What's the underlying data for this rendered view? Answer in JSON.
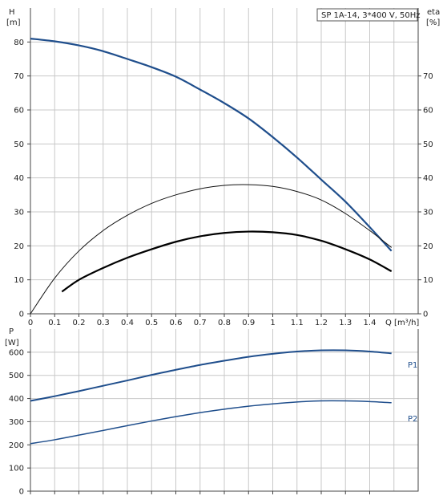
{
  "chart_data": [
    {
      "type": "line",
      "title": "SP 1A-14, 3*400 V, 50Hz",
      "ylabel": "H",
      "yunit": "[m]",
      "y2label": "eta",
      "y2unit": "[%]",
      "xlabel": "Q [m³/h]",
      "xlim": [
        0,
        1.6
      ],
      "ylim": [
        0,
        90
      ],
      "xticks": [
        0,
        0.1,
        0.2,
        0.3,
        0.4,
        0.5,
        0.6,
        0.7,
        0.8,
        0.9,
        1.0,
        1.1,
        1.2,
        1.3,
        1.4
      ],
      "yticks": [
        0,
        10,
        20,
        30,
        40,
        50,
        60,
        70,
        80
      ],
      "y2ticks": [
        0,
        10,
        20,
        30,
        40,
        50,
        60,
        70
      ],
      "grid": true,
      "series": [
        {
          "key": "head",
          "color": "#1f4e8c",
          "x": [
            0,
            0.1,
            0.2,
            0.3,
            0.4,
            0.5,
            0.6,
            0.7,
            0.8,
            0.9,
            1.0,
            1.1,
            1.2,
            1.3,
            1.4,
            1.49
          ],
          "y": [
            81,
            80.2,
            79,
            77.3,
            75,
            72.6,
            69.8,
            66,
            62,
            57.5,
            52,
            46,
            39.5,
            33,
            25.5,
            18.5
          ]
        },
        {
          "key": "eta_pump",
          "color": "#111111",
          "x": [
            0,
            0.1,
            0.2,
            0.3,
            0.4,
            0.5,
            0.6,
            0.7,
            0.8,
            0.9,
            1.0,
            1.1,
            1.2,
            1.3,
            1.4,
            1.49
          ],
          "y": [
            0,
            10.5,
            18.5,
            24.5,
            29,
            32.5,
            35,
            36.8,
            37.8,
            38,
            37.5,
            36,
            33.5,
            29.5,
            24.5,
            19.5
          ]
        },
        {
          "key": "eta_total",
          "color": "#000000",
          "x": [
            0.13,
            0.2,
            0.3,
            0.4,
            0.5,
            0.6,
            0.7,
            0.8,
            0.9,
            1.0,
            1.1,
            1.2,
            1.3,
            1.4,
            1.49
          ],
          "y": [
            6.5,
            10,
            13.5,
            16.5,
            19,
            21.2,
            22.8,
            23.8,
            24.2,
            24,
            23.2,
            21.5,
            19,
            16,
            12.5
          ]
        }
      ]
    },
    {
      "type": "line",
      "ylabel": "P",
      "yunit": "[W]",
      "xlim": [
        0,
        1.6
      ],
      "ylim": [
        0,
        700
      ],
      "yticks": [
        0,
        100,
        200,
        300,
        400,
        500,
        600
      ],
      "grid": true,
      "series": [
        {
          "name": "P1",
          "color": "#1f4e8c",
          "x": [
            0,
            0.1,
            0.2,
            0.3,
            0.4,
            0.5,
            0.6,
            0.7,
            0.8,
            0.9,
            1.0,
            1.1,
            1.2,
            1.3,
            1.4,
            1.49
          ],
          "y": [
            390,
            410,
            432,
            455,
            478,
            502,
            524,
            545,
            563,
            580,
            593,
            603,
            608,
            608,
            603,
            595
          ]
        },
        {
          "name": "P2",
          "color": "#1f4e8c",
          "x": [
            0,
            0.1,
            0.2,
            0.3,
            0.4,
            0.5,
            0.6,
            0.7,
            0.8,
            0.9,
            1.0,
            1.1,
            1.2,
            1.3,
            1.4,
            1.49
          ],
          "y": [
            205,
            222,
            242,
            262,
            283,
            303,
            322,
            339,
            354,
            367,
            377,
            385,
            390,
            390,
            387,
            382
          ]
        }
      ]
    }
  ]
}
